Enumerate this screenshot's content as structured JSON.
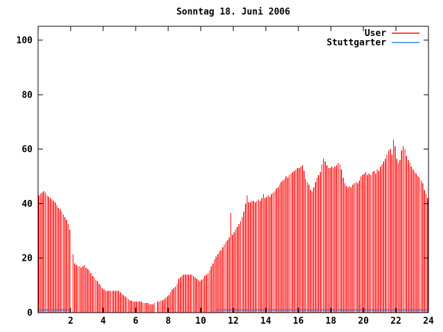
{
  "title": "Sonntag 18. Juni 2006",
  "legend": {
    "position": "top-right-inside",
    "entries": [
      {
        "label": "User",
        "color": "#ff0000",
        "swatch": "line"
      },
      {
        "label": "Stuttgarter",
        "color": "#1c86ee",
        "swatch": "line"
      }
    ]
  },
  "chart_data": {
    "type": "bar",
    "title": "Sonntag 18. Juni 2006",
    "xlabel": "",
    "ylabel": "",
    "xlim": [
      0,
      24
    ],
    "ylim": [
      0,
      105
    ],
    "x_ticks": [
      2,
      4,
      6,
      8,
      10,
      12,
      14,
      16,
      18,
      20,
      22,
      24
    ],
    "y_ticks": [
      0,
      20,
      40,
      60,
      80,
      100
    ],
    "grid": false,
    "legend_position": "top-right-inside",
    "series": [
      {
        "name": "User",
        "style": "impulses",
        "color": "#ff0000",
        "x_start": 0.05,
        "x_step": 0.1,
        "values": [
          43,
          43.5,
          44,
          44.5,
          44,
          43,
          42.5,
          42,
          41.5,
          41,
          40.5,
          39.5,
          38.5,
          38,
          37,
          36,
          35,
          34,
          32.5,
          30.5,
          0,
          21.5,
          18,
          17.5,
          17,
          17,
          16.5,
          17,
          17.5,
          16.5,
          16,
          15.5,
          14.5,
          13.5,
          13,
          12,
          11.5,
          10.5,
          10,
          9,
          8.5,
          8,
          8,
          8,
          8,
          8,
          8,
          8,
          8,
          8,
          7.5,
          7,
          6.5,
          6,
          5.5,
          5,
          4.5,
          4.5,
          4,
          4,
          4,
          4,
          4,
          4,
          3.5,
          3.5,
          3.5,
          3.5,
          3,
          3,
          3,
          3.5,
          0,
          4,
          4,
          4.5,
          4.5,
          5,
          5.5,
          6,
          6.5,
          7.5,
          8.5,
          9,
          9.5,
          10.5,
          12.5,
          13,
          13.5,
          14,
          14,
          14,
          14,
          14,
          14,
          13.5,
          13,
          12.5,
          12,
          11.5,
          12,
          12.5,
          13.5,
          14,
          14.5,
          15.5,
          17,
          18,
          19.5,
          20.5,
          21.5,
          22.5,
          23,
          24,
          25,
          26,
          26.5,
          27.5,
          36.5,
          28.5,
          29.5,
          30.5,
          31.5,
          32.5,
          33.5,
          35,
          37,
          40,
          43,
          40.5,
          40.5,
          41,
          41,
          40.5,
          41,
          41.5,
          41,
          42,
          43.5,
          42,
          42.5,
          43,
          42.5,
          43.5,
          44,
          44.5,
          45.5,
          46,
          47,
          48,
          48.5,
          49,
          50,
          49.5,
          50.5,
          51,
          51.5,
          52,
          52.5,
          53,
          53,
          53.5,
          54,
          52,
          49,
          48,
          47,
          45,
          44.5,
          46,
          48,
          49.5,
          50.5,
          51.5,
          54.5,
          56.5,
          55.5,
          54,
          53,
          53,
          53.5,
          53,
          53.5,
          54,
          55,
          54.5,
          52.5,
          49.5,
          47.5,
          46.5,
          46,
          46.5,
          46,
          47,
          47.5,
          48,
          47.5,
          48.5,
          50,
          50.5,
          51,
          51.5,
          50.5,
          51,
          50.5,
          51.5,
          52,
          51,
          52.5,
          52,
          53.5,
          54.5,
          55.5,
          56.5,
          58,
          59.5,
          60,
          58,
          63.5,
          61,
          56.5,
          55,
          56,
          59.5,
          61,
          60,
          57.5,
          56,
          55,
          53.5,
          52.5,
          51.5,
          51,
          50,
          49.5,
          48.5,
          47.5,
          45,
          43.5,
          42
        ]
      },
      {
        "name": "Stuttgarter",
        "style": "line",
        "color": "#1c86ee",
        "value": 1,
        "segments": [
          [
            0,
            2.0
          ],
          [
            11.0,
            24.0
          ]
        ]
      }
    ]
  }
}
